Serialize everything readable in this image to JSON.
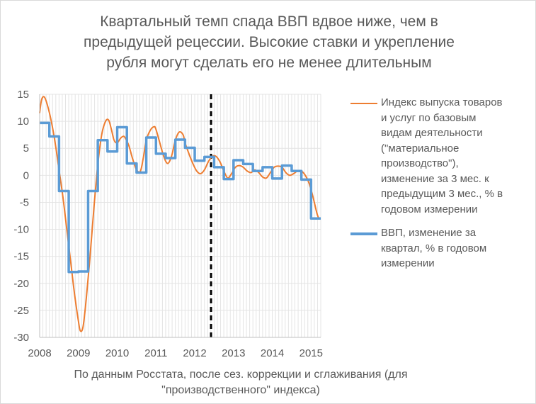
{
  "chart_data": {
    "type": "line",
    "title": "Квартальный темп спада ВВП вдвое ниже, чем в предыдущей рецессии. Высокие ставки и укрепление рубля могут сделать его не менее длительным",
    "note": "По данным Росстата, после сез. коррекции и сглаживания (для \"производственного\" индекса)",
    "ylim": [
      -30,
      15
    ],
    "y_ticks": [
      "15",
      "10",
      "5",
      "0",
      "-5",
      "-10",
      "-15",
      "-20",
      "-25",
      "-30"
    ],
    "x_range": [
      2008.0,
      2015.25
    ],
    "x_ticks": [
      "2008",
      "2009",
      "2010",
      "2011",
      "2012",
      "2013",
      "2014",
      "2015"
    ],
    "grid": true,
    "legend_position": "right",
    "marker_line": {
      "x": 2012.42,
      "style": "dashed",
      "color": "#000000"
    },
    "series": [
      {
        "name": "Индекс выпуска товаров и услуг по базовым видам деятельности (\"материальное производство\"), изменение за 3 мес. к предыдущим 3 мес., % в годовом измерении",
        "color": "#ED7D31",
        "x": [
          2008.0,
          2008.05,
          2008.12,
          2008.2,
          2008.3,
          2008.4,
          2008.5,
          2008.6,
          2008.7,
          2008.8,
          2008.9,
          2009.0,
          2009.05,
          2009.12,
          2009.2,
          2009.3,
          2009.4,
          2009.5,
          2009.6,
          2009.7,
          2009.78,
          2009.85,
          2009.92,
          2010.0,
          2010.08,
          2010.15,
          2010.2,
          2010.3,
          2010.4,
          2010.5,
          2010.6,
          2010.68,
          2010.75,
          2010.85,
          2010.95,
          2011.0,
          2011.1,
          2011.2,
          2011.3,
          2011.4,
          2011.5,
          2011.6,
          2011.7,
          2011.75,
          2011.85,
          2011.95,
          2012.05,
          2012.15,
          2012.25,
          2012.35,
          2012.45,
          2012.55,
          2012.65,
          2012.75,
          2012.85,
          2012.95,
          2013.05,
          2013.15,
          2013.25,
          2013.35,
          2013.45,
          2013.55,
          2013.65,
          2013.75,
          2013.85,
          2013.95,
          2014.05,
          2014.15,
          2014.25,
          2014.35,
          2014.45,
          2014.55,
          2014.65,
          2014.75,
          2014.85,
          2014.95,
          2015.05,
          2015.15,
          2015.2
        ],
        "values": [
          11.5,
          14.0,
          14.5,
          13.0,
          10.0,
          6.0,
          1.0,
          -4.0,
          -10.0,
          -16.0,
          -22.0,
          -27.0,
          -28.8,
          -28.0,
          -23.0,
          -15.0,
          -6.0,
          2.0,
          7.5,
          10.0,
          10.2,
          8.5,
          6.5,
          6.0,
          6.8,
          7.2,
          7.0,
          5.5,
          3.0,
          1.0,
          0.8,
          3.5,
          6.5,
          8.3,
          9.0,
          8.5,
          6.0,
          3.5,
          2.2,
          3.5,
          6.5,
          8.0,
          7.5,
          6.0,
          4.0,
          2.2,
          0.8,
          0.3,
          1.0,
          2.5,
          3.5,
          3.5,
          2.5,
          0.8,
          -0.5,
          0.3,
          1.5,
          1.8,
          1.5,
          0.8,
          0.5,
          1.0,
          0.5,
          -0.3,
          -0.5,
          0.5,
          1.5,
          1.7,
          1.5,
          0.5,
          0.0,
          0.3,
          0.8,
          0.8,
          0.0,
          -1.5,
          -4.0,
          -7.0,
          -8.0
        ]
      },
      {
        "name": "ВВП, изменение за квартал, % в годовом измерении",
        "color": "#5B9BD5",
        "step": true,
        "x": [
          2008.0,
          2008.25,
          2008.5,
          2008.75,
          2009.0,
          2009.25,
          2009.5,
          2009.75,
          2010.0,
          2010.25,
          2010.5,
          2010.75,
          2011.0,
          2011.25,
          2011.5,
          2011.75,
          2012.0,
          2012.25,
          2012.5,
          2012.75,
          2013.0,
          2013.25,
          2013.5,
          2013.75,
          2014.0,
          2014.25,
          2014.5,
          2014.75,
          2015.0,
          2015.25
        ],
        "values": [
          9.7,
          7.2,
          -2.9,
          -17.9,
          -17.8,
          -2.9,
          6.5,
          4.4,
          8.9,
          2.2,
          0.5,
          7.0,
          4.0,
          3.2,
          6.6,
          5.1,
          2.7,
          3.4,
          1.5,
          -0.7,
          2.8,
          2.1,
          0.8,
          1.5,
          -0.6,
          1.8,
          0.8,
          -0.8,
          -8.0,
          -8.0
        ]
      }
    ],
    "legend_labels": [
      [
        "Индекс выпуска товаров",
        "и услуг по базовым",
        "видам деятельности",
        "(\"материальное",
        "производство\"),",
        "изменение за 3 мес. к",
        "предыдущим 3 мес., % в",
        "годовом измерении"
      ],
      [
        "ВВП, изменение за",
        "квартал, % в годовом",
        "измерении"
      ]
    ],
    "title_lines": [
      "Квартальный темп спада ВВП вдвое ниже, чем в",
      "предыдущей рецессии. Высокие ставки и укрепление",
      "рубля могут сделать его не менее длительным"
    ],
    "note_lines": [
      "По данным Росстата, после сез. коррекции и сглаживания (для",
      "\"производственного\" индекса)"
    ]
  }
}
